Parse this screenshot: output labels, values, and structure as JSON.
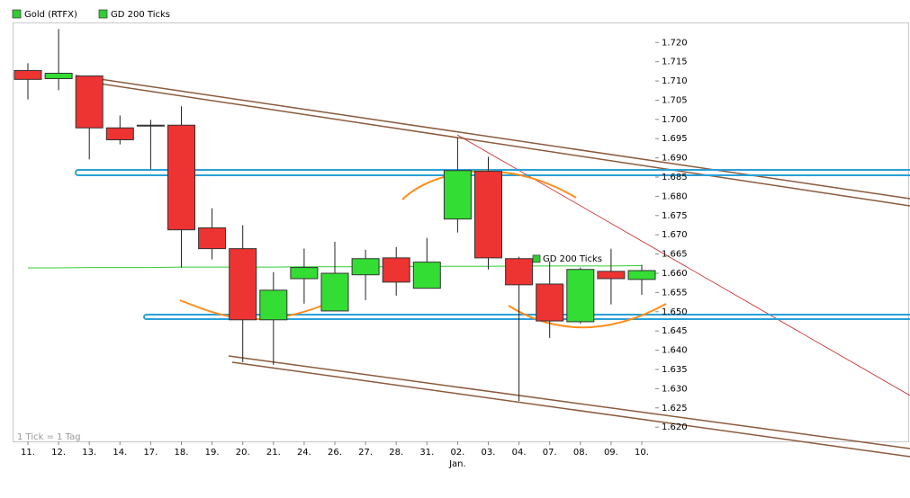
{
  "chart_data": {
    "type": "candlestick",
    "categories": [
      "11.",
      "12.",
      "13.",
      "14.",
      "17.",
      "18.",
      "19.",
      "20.",
      "21.",
      "24.",
      "26.",
      "27.",
      "28.",
      "31.",
      "02.",
      "03.",
      "04.",
      "07.",
      "08.",
      "09.",
      "10."
    ],
    "month_label": "Jan.",
    "footnote": "1 Tick = 1 Tag",
    "series": [
      {
        "name": "Gold (RTFX)",
        "color": "#33cc33",
        "up_color": "#33dd33",
        "down_color": "#ee3333",
        "open": [
          1.7127,
          1.7106,
          1.7113,
          1.6978,
          1.6985,
          1.6985,
          1.6718,
          1.6664,
          1.6479,
          1.6586,
          1.6502,
          1.6596,
          1.664,
          1.6561,
          1.6741,
          1.6865,
          1.6638,
          1.6572,
          1.6474,
          1.6605,
          1.6584
        ],
        "high": [
          1.7146,
          1.7235,
          1.7113,
          1.701,
          1.6999,
          1.7034,
          1.6769,
          1.6725,
          1.6603,
          1.6664,
          1.6682,
          1.6661,
          1.6668,
          1.6692,
          1.6952,
          1.6903,
          1.6643,
          1.6631,
          1.6615,
          1.6664,
          1.6622
        ],
        "low": [
          1.7052,
          1.7076,
          1.6896,
          1.6935,
          1.687,
          1.6615,
          1.6636,
          1.6369,
          1.6362,
          1.6521,
          1.6502,
          1.653,
          1.6542,
          1.6561,
          1.6706,
          1.661,
          1.6268,
          1.6432,
          1.6469,
          1.6519,
          1.6544
        ],
        "close": [
          1.7104,
          1.712,
          1.6978,
          1.6947,
          1.6985,
          1.6713,
          1.6664,
          1.6479,
          1.6556,
          1.6615,
          1.66,
          1.6638,
          1.6577,
          1.6629,
          1.6867,
          1.664,
          1.657,
          1.6476,
          1.661,
          1.6586,
          1.6607
        ]
      },
      {
        "name": "GD 200 Ticks",
        "color": "#33cc33",
        "values": [
          1.6614,
          1.6614,
          1.6615,
          1.6615,
          1.6615,
          1.6616,
          1.6616,
          1.6616,
          1.6616,
          1.6617,
          1.6617,
          1.6617,
          1.6617,
          1.6618,
          1.6618,
          1.6618,
          1.6619,
          1.6619,
          1.6619,
          1.6619,
          1.662
        ]
      }
    ],
    "ylim": [
      1.6163,
      1.7252
    ],
    "yticks": [
      {
        "value": 1.72,
        "label": "1.720"
      },
      1.715,
      {
        "value": 1.71,
        "label": "1.710"
      },
      1.705,
      {
        "value": 1.7,
        "label": "1.700"
      },
      1.695,
      {
        "value": 1.69,
        "label": "1.690"
      },
      1.685,
      {
        "value": 1.68,
        "label": "1.680"
      },
      1.675,
      {
        "value": 1.67,
        "label": "1.670"
      },
      1.665,
      {
        "value": 1.66,
        "label": "1.660"
      },
      1.655,
      {
        "value": 1.65,
        "label": "1.650"
      },
      1.645,
      {
        "value": 1.64,
        "label": "1.640"
      },
      1.635,
      {
        "value": 1.63,
        "label": "1.630"
      },
      1.625,
      {
        "value": 1.62,
        "label": "1.620"
      }
    ]
  }
}
